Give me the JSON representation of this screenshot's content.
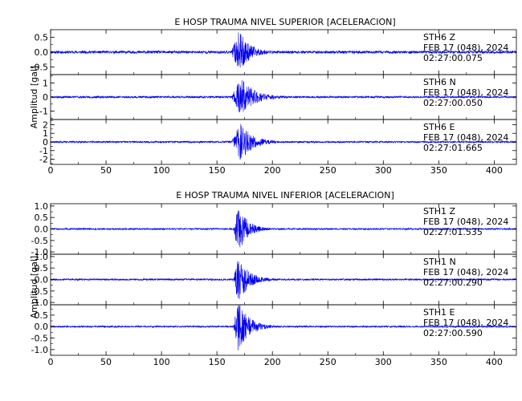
{
  "style": {
    "trace_color": "#0000ee",
    "axis_color": "#000000",
    "background": "#ffffff"
  },
  "chart_data": [
    {
      "type": "line",
      "title": "E HOSP TRAUMA NIVEL SUPERIOR [ACELERACION]",
      "ylabel": "Amplitud [gal]",
      "xlabel": "",
      "xlim": [
        0,
        420
      ],
      "xticks": [
        0,
        50,
        100,
        150,
        200,
        250,
        300,
        350,
        400
      ],
      "xtick_labels": [
        "0",
        "50",
        "100",
        "150",
        "200",
        "250",
        "300",
        "350",
        "400"
      ],
      "grid": false,
      "channels": [
        {
          "ylim": [
            -0.75,
            0.75
          ],
          "yticks": [
            -0.5,
            0.0,
            0.5
          ],
          "ytick_labels": [
            "-0.5",
            "0.0",
            "0.5"
          ],
          "station": "STH6",
          "component": "Z",
          "label_lines": [
            "STH6    Z",
            "FEB 17 (048), 2024",
            "02:27:00.075"
          ],
          "trace": {
            "noise": 0.045,
            "onset": 163,
            "peak_time": 170,
            "peak": 0.68,
            "decay": 9,
            "floor": 0.05,
            "seed": 11
          }
        },
        {
          "ylim": [
            -1.6,
            1.6
          ],
          "yticks": [
            -1,
            0,
            1
          ],
          "ytick_labels": [
            "-1",
            "0",
            "1"
          ],
          "station": "STH6",
          "component": "N",
          "label_lines": [
            "STH6    N",
            "FEB 17 (048), 2024",
            "02:27:00.050"
          ],
          "trace": {
            "noise": 0.07,
            "onset": 163,
            "peak_time": 172,
            "peak": 1.35,
            "decay": 12,
            "floor": 0.08,
            "seed": 23
          }
        },
        {
          "ylim": [
            -2.6,
            2.6
          ],
          "yticks": [
            -2,
            -1,
            0,
            1,
            2
          ],
          "ytick_labels": [
            "-2",
            "-1",
            "0",
            "1",
            "2"
          ],
          "station": "STH6",
          "component": "E",
          "label_lines": [
            "STH6    E",
            "FEB 17 (048), 2024",
            "02:27:01.665"
          ],
          "trace": {
            "noise": 0.1,
            "onset": 163,
            "peak_time": 171,
            "peak": 2.2,
            "decay": 11,
            "floor": 0.08,
            "seed": 37
          }
        }
      ]
    },
    {
      "type": "line",
      "title": "E HOSP TRAUMA NIVEL INFERIOR [ACELERACION]",
      "ylabel": "Amplitud  [gal]",
      "xlabel": "",
      "xlim": [
        0,
        420
      ],
      "xticks": [
        0,
        50,
        100,
        150,
        200,
        250,
        300,
        350,
        400
      ],
      "xtick_labels": [
        "0",
        "50",
        "100",
        "150",
        "200",
        "250",
        "300",
        "350",
        "400"
      ],
      "grid": false,
      "channels": [
        {
          "ylim": [
            -1.1,
            1.1
          ],
          "yticks": [
            -1.0,
            -0.5,
            0.0,
            0.5,
            1.0
          ],
          "ytick_labels": [
            "-1.0",
            "-0.5",
            "0.0",
            "0.5",
            "1.0"
          ],
          "station": "STH1",
          "component": "Z",
          "label_lines": [
            "STH1    Z",
            "FEB 17 (048), 2024",
            "02:27:01.535"
          ],
          "trace": {
            "noise": 0.035,
            "onset": 165,
            "peak_time": 169,
            "peak": 1.05,
            "decay": 8,
            "floor": 0.05,
            "seed": 51
          }
        },
        {
          "ylim": [
            -1.1,
            1.1
          ],
          "yticks": [
            -1.0,
            -0.5,
            0.0,
            0.5,
            1.0
          ],
          "ytick_labels": [
            "-1.0",
            "-0.5",
            "0.0",
            "0.5",
            "1.0"
          ],
          "station": "STH1",
          "component": "N",
          "label_lines": [
            "STH1    N",
            "FEB 17 (048), 2024",
            "02:27:00.290"
          ],
          "trace": {
            "noise": 0.035,
            "onset": 165,
            "peak_time": 169,
            "peak": 1.02,
            "decay": 9,
            "floor": 0.05,
            "seed": 67
          }
        },
        {
          "ylim": [
            -1.25,
            0.95
          ],
          "yticks": [
            -1.0,
            -0.5,
            0.0,
            0.5
          ],
          "ytick_labels": [
            "-1.0",
            "-0.5",
            "0.0",
            "0.5"
          ],
          "station": "STH1",
          "component": "E",
          "label_lines": [
            "STH1    E",
            "FEB 17 (048), 2024",
            "02:27:00.590"
          ],
          "trace": {
            "noise": 0.035,
            "onset": 165,
            "peak_time": 169,
            "peak": 1.15,
            "decay": 9,
            "floor": 0.05,
            "seed": 79
          }
        }
      ]
    }
  ]
}
